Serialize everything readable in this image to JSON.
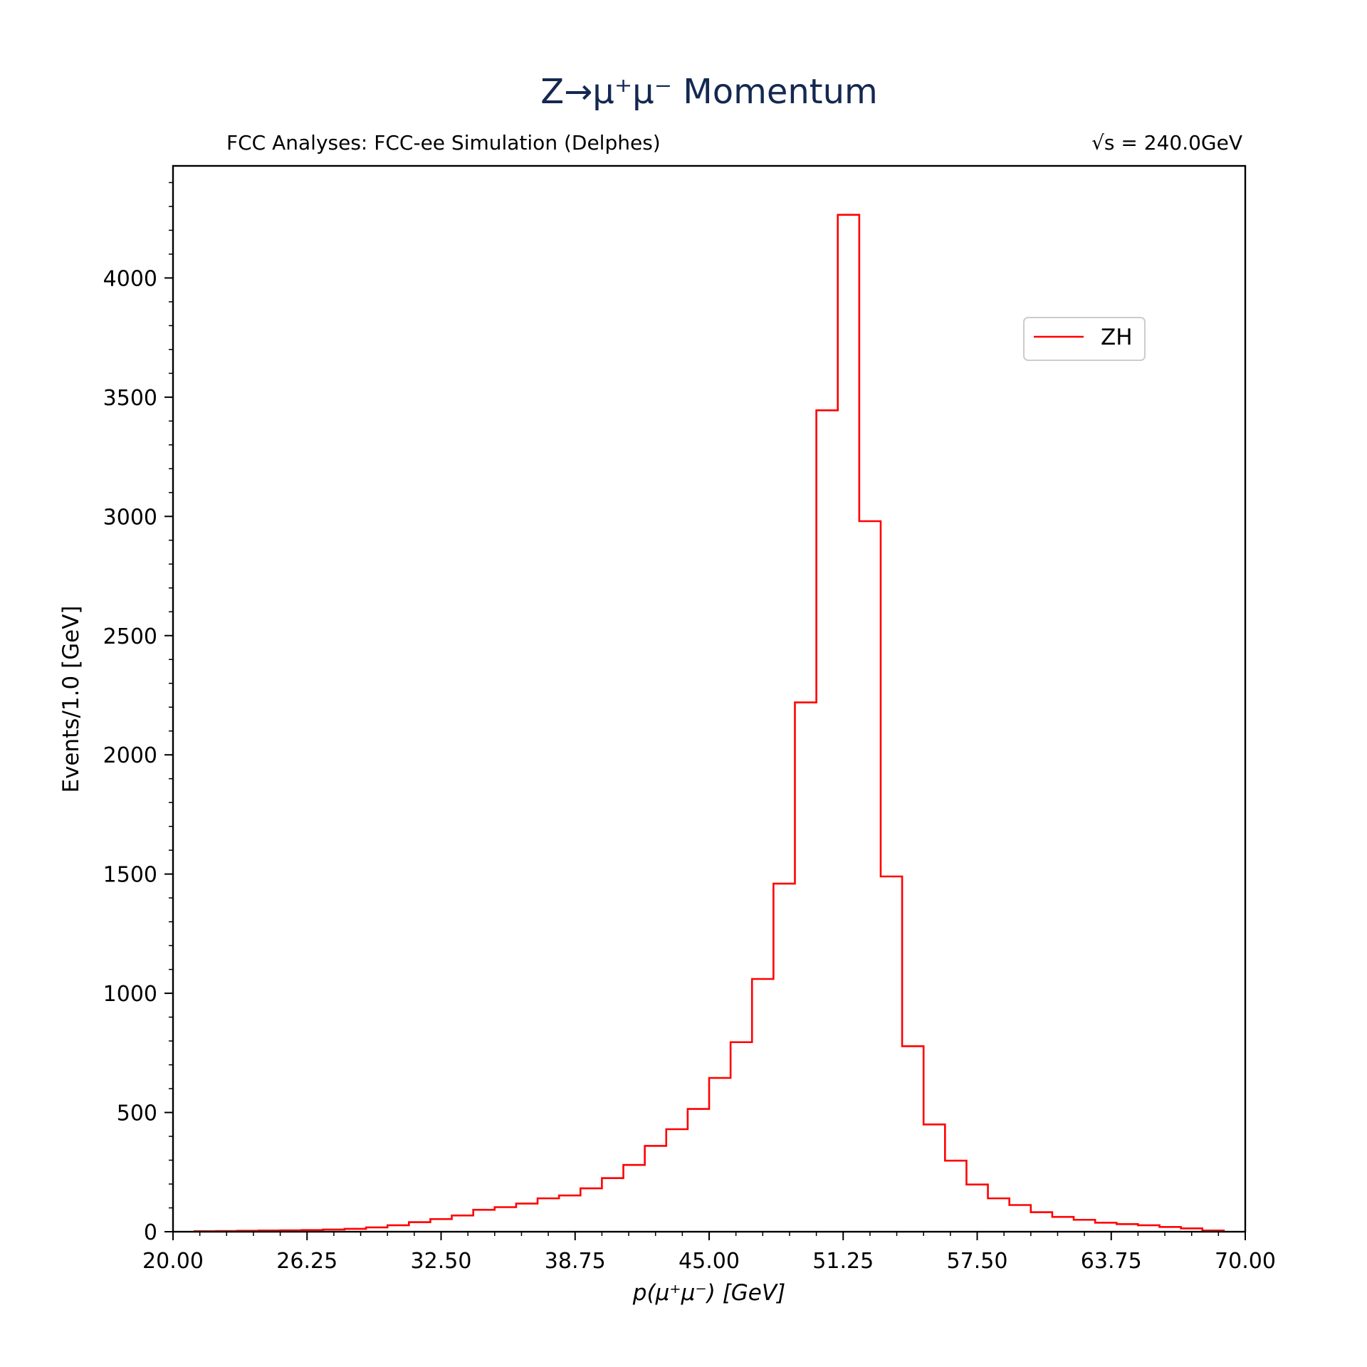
{
  "title": "Z→μ⁺μ⁻ Momentum",
  "subtitle_left": "FCC Analyses: FCC-ee Simulation (Delphes)",
  "subtitle_right": "√s = 240.0GeV",
  "colors": {
    "series": "#ff0000",
    "title": "#142850",
    "axes": "#000000"
  },
  "chart_data": {
    "type": "histogram",
    "title": "Z→μ⁺μ⁻ Momentum",
    "xlabel": "p(μ⁺μ⁻) [GeV]",
    "ylabel": "Events/1.0 [GeV]",
    "xlim": [
      20,
      70
    ],
    "ylim": [
      0,
      4470
    ],
    "xticks": [
      "20.00",
      "26.25",
      "32.50",
      "38.75",
      "45.00",
      "51.25",
      "57.50",
      "63.75",
      "70.00"
    ],
    "yticks": [
      "0",
      "500",
      "1000",
      "1500",
      "2000",
      "2500",
      "3000",
      "3500",
      "4000"
    ],
    "grid": false,
    "legend_position": "upper-right",
    "bin_edges": [
      21,
      22,
      23,
      24,
      25,
      26,
      27,
      28,
      29,
      30,
      31,
      32,
      33,
      34,
      35,
      36,
      37,
      38,
      39,
      40,
      41,
      42,
      43,
      44,
      45,
      46,
      47,
      48,
      49,
      50,
      51,
      52,
      53,
      54,
      55,
      56,
      57,
      58,
      59,
      60,
      61,
      62,
      63,
      64,
      65,
      66,
      67,
      68,
      69
    ],
    "series": [
      {
        "name": "ZH",
        "values": [
          2,
          3,
          4,
          5,
          6,
          7,
          9,
          12,
          18,
          27,
          40,
          53,
          68,
          92,
          103,
          118,
          140,
          152,
          182,
          225,
          280,
          360,
          430,
          515,
          645,
          795,
          1060,
          1460,
          2220,
          3445,
          4265,
          2980,
          1490,
          778,
          450,
          298,
          198,
          140,
          112,
          82,
          62,
          50,
          38,
          32,
          27,
          20,
          14,
          5
        ]
      }
    ]
  }
}
